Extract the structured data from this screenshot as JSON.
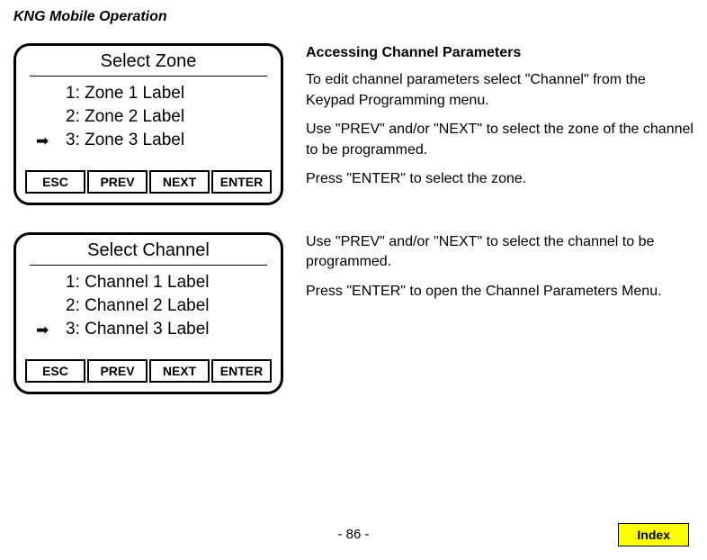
{
  "header": "KNG Mobile Operation",
  "screen1": {
    "title": "Select Zone",
    "items": [
      {
        "label": "1: Zone 1 Label",
        "selected": false
      },
      {
        "label": "2: Zone 2 Label",
        "selected": false
      },
      {
        "label": "3: Zone 3 Label",
        "selected": true
      }
    ],
    "buttons": [
      "ESC",
      "PREV",
      "NEXT",
      "ENTER"
    ]
  },
  "screen2": {
    "title": "Select Channel",
    "items": [
      {
        "label": "1: Channel 1 Label",
        "selected": false
      },
      {
        "label": "2: Channel 2 Label",
        "selected": false
      },
      {
        "label": "3: Channel 3 Label",
        "selected": true
      }
    ],
    "buttons": [
      "ESC",
      "PREV",
      "NEXT",
      "ENTER"
    ]
  },
  "text1": {
    "heading": "Accessing Channel Parameters",
    "p1": "To edit channel parameters select \"Channel\" from the Keypad Programming menu.",
    "p2": "Use \"PREV\" and/or \"NEXT\" to select the zone of the channel to be programmed.",
    "p3": "Press \"ENTER\" to select the zone."
  },
  "text2": {
    "p1": "Use \"PREV\" and/or \"NEXT\" to select the channel to be programmed.",
    "p2": "Press \"ENTER\" to open the Channel Parameters Menu."
  },
  "pageNumber": "- 86 -",
  "indexLabel": "Index",
  "arrowGlyph": "➡",
  "colors": {
    "indexBg": "#ffff00",
    "background": "#ffffff",
    "border": "#000000"
  }
}
